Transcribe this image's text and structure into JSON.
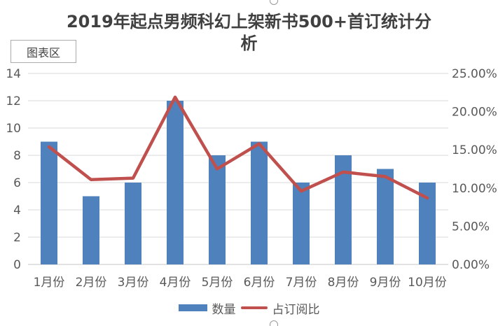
{
  "tooltip": {
    "label": "图表区"
  },
  "title": {
    "lines": [
      "2019年起点男频科幻上架新书500+首订统计分",
      "析"
    ]
  },
  "colors": {
    "bar": "#4f81bd",
    "line": "#c0504d",
    "grid": "#d9d9d9",
    "axis_line": "#c6c6c6",
    "axis_text": "#595959",
    "title_text": "#404040",
    "handle_border": "#999999",
    "tooltip_border": "#ababab"
  },
  "selection_handles": [
    "top-center",
    "bottom-center"
  ],
  "chart_data": {
    "type": "bar",
    "combo": "bar+line",
    "title": "2019年起点男频科幻上架新书500+首订统计分析",
    "categories": [
      "1月份",
      "2月份",
      "3月份",
      "4月份",
      "5月份",
      "6月份",
      "7月份",
      "8月份",
      "9月份",
      "10月份"
    ],
    "series": [
      {
        "name": "数量",
        "type": "bar",
        "axis": "left",
        "color": "#4f81bd",
        "values": [
          9,
          5,
          6,
          12,
          8,
          9,
          6,
          8,
          7,
          6
        ]
      },
      {
        "name": "占订阅比",
        "type": "line",
        "axis": "right",
        "color": "#c0504d",
        "unit": "%",
        "values": [
          15.4,
          11.1,
          11.3,
          21.9,
          12.5,
          15.8,
          9.6,
          12.1,
          11.5,
          8.7
        ]
      }
    ],
    "left_axis": {
      "min": 0,
      "max": 14,
      "step": 2,
      "tick_labels": [
        "0",
        "2",
        "4",
        "6",
        "8",
        "10",
        "12",
        "14"
      ]
    },
    "right_axis": {
      "min": 0,
      "max": 25,
      "step": 5,
      "tick_labels": [
        "0.00%",
        "5.00%",
        "10.00%",
        "15.00%",
        "20.00%",
        "25.00%"
      ]
    },
    "grid": true,
    "legend_position": "bottom"
  }
}
